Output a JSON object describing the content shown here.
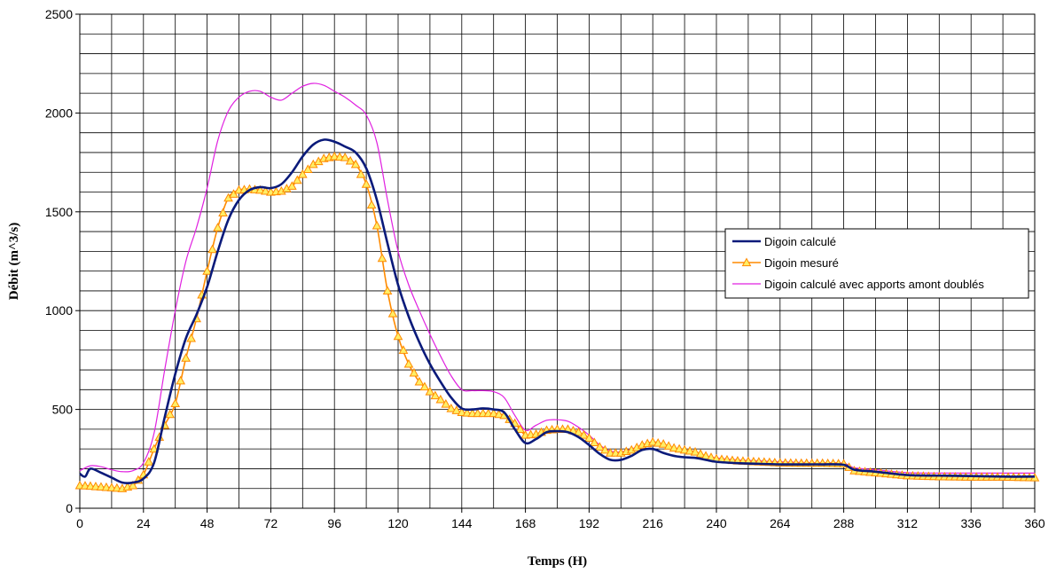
{
  "chart_data": {
    "type": "line",
    "title": "",
    "xlabel": "Temps (H)",
    "ylabel": "Débit (m^3/s)",
    "xlim": [
      0,
      360
    ],
    "ylim": [
      0,
      2500
    ],
    "x_ticks": [
      "0",
      "24",
      "48",
      "72",
      "96",
      "120",
      "144",
      "168",
      "192",
      "216",
      "240",
      "264",
      "288",
      "312",
      "336",
      "360"
    ],
    "y_ticks": [
      "0",
      "500",
      "1000",
      "1500",
      "2000",
      "2500"
    ],
    "grid": true,
    "legend_position": "right",
    "series": [
      {
        "name": "Digoin calculé",
        "color": "#0a1a7a",
        "marker": "none",
        "points": [
          [
            0,
            175
          ],
          [
            2,
            160
          ],
          [
            4,
            200
          ],
          [
            8,
            180
          ],
          [
            12,
            155
          ],
          [
            16,
            130
          ],
          [
            20,
            130
          ],
          [
            24,
            150
          ],
          [
            28,
            230
          ],
          [
            32,
            460
          ],
          [
            36,
            680
          ],
          [
            40,
            860
          ],
          [
            44,
            980
          ],
          [
            48,
            1120
          ],
          [
            52,
            1300
          ],
          [
            56,
            1460
          ],
          [
            60,
            1560
          ],
          [
            64,
            1610
          ],
          [
            68,
            1625
          ],
          [
            72,
            1620
          ],
          [
            76,
            1640
          ],
          [
            80,
            1700
          ],
          [
            84,
            1780
          ],
          [
            88,
            1840
          ],
          [
            92,
            1865
          ],
          [
            96,
            1855
          ],
          [
            100,
            1830
          ],
          [
            104,
            1800
          ],
          [
            108,
            1720
          ],
          [
            112,
            1560
          ],
          [
            116,
            1340
          ],
          [
            120,
            1130
          ],
          [
            124,
            970
          ],
          [
            128,
            840
          ],
          [
            132,
            730
          ],
          [
            136,
            640
          ],
          [
            140,
            560
          ],
          [
            144,
            505
          ],
          [
            148,
            500
          ],
          [
            152,
            505
          ],
          [
            156,
            500
          ],
          [
            160,
            485
          ],
          [
            164,
            400
          ],
          [
            168,
            330
          ],
          [
            172,
            350
          ],
          [
            176,
            385
          ],
          [
            180,
            390
          ],
          [
            184,
            385
          ],
          [
            188,
            360
          ],
          [
            192,
            320
          ],
          [
            196,
            275
          ],
          [
            200,
            245
          ],
          [
            204,
            245
          ],
          [
            208,
            265
          ],
          [
            212,
            295
          ],
          [
            216,
            300
          ],
          [
            220,
            280
          ],
          [
            224,
            265
          ],
          [
            228,
            258
          ],
          [
            232,
            255
          ],
          [
            236,
            245
          ],
          [
            240,
            235
          ],
          [
            248,
            228
          ],
          [
            256,
            225
          ],
          [
            264,
            222
          ],
          [
            272,
            222
          ],
          [
            280,
            222
          ],
          [
            288,
            220
          ],
          [
            292,
            195
          ],
          [
            300,
            185
          ],
          [
            312,
            168
          ],
          [
            324,
            165
          ],
          [
            336,
            163
          ],
          [
            348,
            160
          ],
          [
            360,
            160
          ]
        ]
      },
      {
        "name": "Digoin mesuré",
        "color": "#ff8a00",
        "marker": "triangle",
        "points": [
          [
            0,
            115
          ],
          [
            4,
            112
          ],
          [
            8,
            108
          ],
          [
            12,
            104
          ],
          [
            16,
            100
          ],
          [
            20,
            115
          ],
          [
            24,
            170
          ],
          [
            28,
            300
          ],
          [
            32,
            420
          ],
          [
            36,
            530
          ],
          [
            40,
            760
          ],
          [
            44,
            960
          ],
          [
            48,
            1200
          ],
          [
            52,
            1420
          ],
          [
            56,
            1570
          ],
          [
            60,
            1610
          ],
          [
            64,
            1615
          ],
          [
            68,
            1610
          ],
          [
            72,
            1600
          ],
          [
            76,
            1605
          ],
          [
            80,
            1630
          ],
          [
            84,
            1690
          ],
          [
            88,
            1740
          ],
          [
            92,
            1770
          ],
          [
            96,
            1780
          ],
          [
            100,
            1775
          ],
          [
            104,
            1740
          ],
          [
            108,
            1640
          ],
          [
            112,
            1430
          ],
          [
            116,
            1100
          ],
          [
            120,
            870
          ],
          [
            124,
            730
          ],
          [
            128,
            640
          ],
          [
            132,
            590
          ],
          [
            136,
            550
          ],
          [
            140,
            505
          ],
          [
            144,
            485
          ],
          [
            148,
            480
          ],
          [
            152,
            480
          ],
          [
            156,
            480
          ],
          [
            160,
            470
          ],
          [
            164,
            430
          ],
          [
            168,
            370
          ],
          [
            172,
            375
          ],
          [
            176,
            395
          ],
          [
            180,
            400
          ],
          [
            184,
            400
          ],
          [
            188,
            385
          ],
          [
            192,
            355
          ],
          [
            196,
            310
          ],
          [
            200,
            280
          ],
          [
            204,
            280
          ],
          [
            208,
            295
          ],
          [
            212,
            320
          ],
          [
            216,
            335
          ],
          [
            220,
            325
          ],
          [
            224,
            305
          ],
          [
            228,
            295
          ],
          [
            232,
            285
          ],
          [
            236,
            265
          ],
          [
            240,
            250
          ],
          [
            248,
            240
          ],
          [
            256,
            235
          ],
          [
            264,
            230
          ],
          [
            272,
            228
          ],
          [
            280,
            228
          ],
          [
            288,
            225
          ],
          [
            292,
            190
          ],
          [
            300,
            180
          ],
          [
            312,
            165
          ],
          [
            324,
            160
          ],
          [
            336,
            158
          ],
          [
            348,
            158
          ],
          [
            360,
            155
          ]
        ]
      },
      {
        "name": "Digoin calculé avec apports amont doublés",
        "color": "#e020e0",
        "marker": "none",
        "points": [
          [
            0,
            190
          ],
          [
            4,
            215
          ],
          [
            8,
            210
          ],
          [
            12,
            195
          ],
          [
            16,
            185
          ],
          [
            20,
            190
          ],
          [
            24,
            230
          ],
          [
            28,
            380
          ],
          [
            32,
            700
          ],
          [
            36,
            1000
          ],
          [
            40,
            1250
          ],
          [
            44,
            1420
          ],
          [
            48,
            1620
          ],
          [
            52,
            1860
          ],
          [
            56,
            2010
          ],
          [
            60,
            2080
          ],
          [
            64,
            2110
          ],
          [
            68,
            2110
          ],
          [
            72,
            2080
          ],
          [
            76,
            2065
          ],
          [
            80,
            2100
          ],
          [
            84,
            2135
          ],
          [
            88,
            2150
          ],
          [
            92,
            2140
          ],
          [
            96,
            2110
          ],
          [
            100,
            2080
          ],
          [
            104,
            2040
          ],
          [
            108,
            1990
          ],
          [
            112,
            1850
          ],
          [
            116,
            1560
          ],
          [
            120,
            1300
          ],
          [
            124,
            1130
          ],
          [
            128,
            1000
          ],
          [
            132,
            880
          ],
          [
            136,
            770
          ],
          [
            140,
            670
          ],
          [
            144,
            600
          ],
          [
            148,
            595
          ],
          [
            152,
            595
          ],
          [
            156,
            590
          ],
          [
            160,
            560
          ],
          [
            164,
            470
          ],
          [
            168,
            395
          ],
          [
            172,
            420
          ],
          [
            176,
            445
          ],
          [
            180,
            448
          ],
          [
            184,
            440
          ],
          [
            188,
            410
          ],
          [
            192,
            370
          ],
          [
            196,
            320
          ],
          [
            200,
            290
          ],
          [
            204,
            285
          ],
          [
            208,
            300
          ],
          [
            212,
            320
          ],
          [
            216,
            330
          ],
          [
            220,
            315
          ],
          [
            224,
            305
          ],
          [
            228,
            295
          ],
          [
            232,
            285
          ],
          [
            236,
            265
          ],
          [
            240,
            255
          ],
          [
            248,
            245
          ],
          [
            256,
            240
          ],
          [
            264,
            235
          ],
          [
            272,
            232
          ],
          [
            280,
            230
          ],
          [
            288,
            228
          ],
          [
            292,
            205
          ],
          [
            300,
            195
          ],
          [
            312,
            180
          ],
          [
            324,
            178
          ],
          [
            336,
            178
          ],
          [
            348,
            178
          ],
          [
            360,
            178
          ]
        ]
      }
    ]
  }
}
